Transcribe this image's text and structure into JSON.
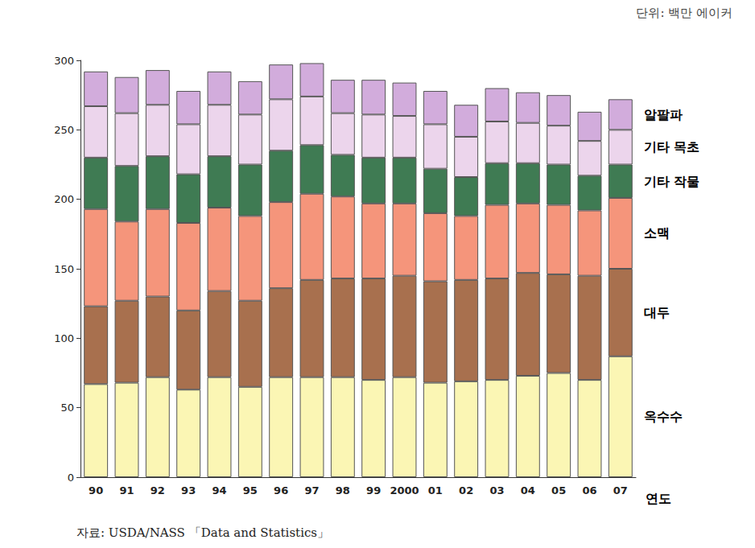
{
  "chart_data": {
    "type": "bar",
    "stacked": true,
    "grid": false,
    "x_label": "연도",
    "annotations": [
      "단위: 백만 에이커",
      "자료: USDA/NASS 「Data and Statistics」"
    ],
    "categories": [
      "90",
      "91",
      "92",
      "93",
      "94",
      "95",
      "96",
      "97",
      "98",
      "99",
      "2000",
      "01",
      "02",
      "03",
      "04",
      "05",
      "06",
      "07"
    ],
    "ylim": [
      0,
      300
    ],
    "yticks": [
      0,
      50,
      100,
      150,
      200,
      250,
      300
    ],
    "series": [
      {
        "name": "옥수수",
        "color": "#fbf6b4",
        "values": [
          67,
          68,
          72,
          63,
          72,
          65,
          72,
          72,
          72,
          70,
          72,
          68,
          69,
          70,
          73,
          75,
          70,
          87
        ]
      },
      {
        "name": "대두",
        "color": "#a8704e",
        "values": [
          56,
          59,
          58,
          57,
          62,
          62,
          64,
          70,
          71,
          73,
          73,
          73,
          73,
          73,
          74,
          71,
          75,
          63
        ]
      },
      {
        "name": "소맥",
        "color": "#f5957b",
        "values": [
          70,
          57,
          63,
          63,
          60,
          61,
          62,
          62,
          59,
          54,
          52,
          49,
          46,
          53,
          50,
          50,
          47,
          51
        ]
      },
      {
        "name": "기타 작물",
        "color": "#3f7b53",
        "values": [
          37,
          40,
          38,
          35,
          37,
          37,
          37,
          35,
          30,
          33,
          33,
          32,
          28,
          30,
          29,
          29,
          25,
          24
        ]
      },
      {
        "name": "기타 목초",
        "color": "#ecd5ec",
        "values": [
          37,
          38,
          37,
          36,
          37,
          36,
          37,
          35,
          30,
          31,
          30,
          32,
          29,
          30,
          29,
          28,
          25,
          25
        ]
      },
      {
        "name": "알팔파",
        "color": "#d2acdc",
        "values": [
          25,
          26,
          25,
          24,
          24,
          24,
          25,
          24,
          24,
          25,
          24,
          24,
          23,
          24,
          22,
          22,
          21,
          22
        ]
      }
    ]
  }
}
